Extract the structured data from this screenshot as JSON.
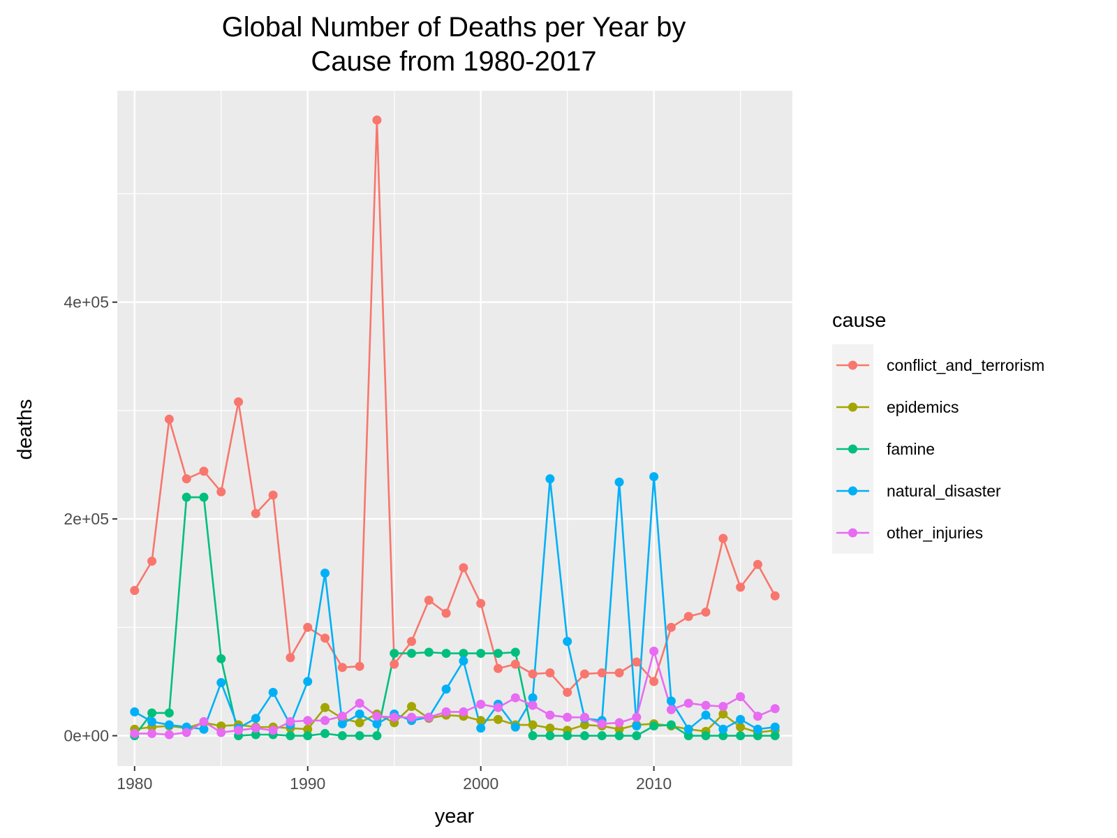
{
  "chart_data": {
    "type": "line",
    "title_lines": [
      "Global Number of Deaths per Year by",
      "Cause from 1980-2017"
    ],
    "xlabel": "year",
    "ylabel": "deaths",
    "xlim": [
      1979,
      2018
    ],
    "ylim": [
      -28000,
      595000
    ],
    "x_ticks": [
      1980,
      1990,
      2000,
      2010
    ],
    "x_tick_labels": [
      "1980",
      "1990",
      "2000",
      "2010"
    ],
    "y_ticks": [
      0,
      200000,
      400000
    ],
    "y_tick_labels": [
      "0e+00",
      "2e+05",
      "4e+05"
    ],
    "y_minor_ticks": [
      100000,
      300000,
      500000
    ],
    "grid": true,
    "legend_title": "cause",
    "legend_position": "right",
    "x": [
      1980,
      1981,
      1982,
      1983,
      1984,
      1985,
      1986,
      1987,
      1988,
      1989,
      1990,
      1991,
      1992,
      1993,
      1994,
      1995,
      1996,
      1997,
      1998,
      1999,
      2000,
      2001,
      2002,
      2003,
      2004,
      2005,
      2006,
      2007,
      2008,
      2009,
      2010,
      2011,
      2012,
      2013,
      2014,
      2015,
      2016,
      2017
    ],
    "series": [
      {
        "name": "conflict_and_terrorism",
        "color": "#F8766D",
        "values": [
          134000,
          161000,
          292000,
          237000,
          244000,
          225000,
          308000,
          205000,
          222000,
          72000,
          100000,
          90000,
          63000,
          64000,
          568000,
          66000,
          87000,
          125000,
          113000,
          155000,
          122000,
          62000,
          66000,
          57000,
          58000,
          40000,
          57000,
          58000,
          58000,
          68000,
          50000,
          100000,
          110000,
          114000,
          182000,
          137000,
          158000,
          129000
        ]
      },
      {
        "name": "epidemics",
        "color": "#A3A500",
        "values": [
          6000,
          8000,
          9000,
          7000,
          12000,
          9000,
          10000,
          8000,
          8000,
          7000,
          6000,
          26000,
          16000,
          12000,
          20000,
          12000,
          27000,
          16000,
          19000,
          18000,
          14000,
          15000,
          10000,
          10000,
          7000,
          5000,
          10000,
          9000,
          6000,
          10000,
          11000,
          9000,
          6000,
          4000,
          20000,
          8000,
          3000,
          5000
        ]
      },
      {
        "name": "famine",
        "color": "#00BF7D",
        "values": [
          0,
          21000,
          21000,
          220000,
          220000,
          71000,
          0,
          1000,
          1000,
          0,
          0,
          2000,
          0,
          0,
          0,
          76000,
          76000,
          77000,
          76000,
          76000,
          76000,
          76000,
          77000,
          0,
          0,
          0,
          0,
          0,
          0,
          0,
          9000,
          10000,
          0,
          0,
          0,
          0,
          0,
          0
        ]
      },
      {
        "name": "natural_disaster",
        "color": "#00B0F6",
        "values": [
          22000,
          13000,
          10000,
          8000,
          6000,
          49000,
          7000,
          16000,
          40000,
          10000,
          50000,
          150000,
          11000,
          20000,
          11000,
          20000,
          14000,
          17000,
          43000,
          69000,
          7000,
          29000,
          8000,
          35000,
          237000,
          87000,
          16000,
          14000,
          234000,
          9000,
          239000,
          32000,
          6000,
          19000,
          6000,
          15000,
          6000,
          8000
        ]
      },
      {
        "name": "other_injuries",
        "color": "#E76BF3",
        "values": [
          2000,
          2000,
          1000,
          3000,
          13000,
          3000,
          5000,
          7000,
          5000,
          13000,
          14000,
          14000,
          18000,
          30000,
          18000,
          17000,
          17000,
          17000,
          22000,
          22000,
          29000,
          26000,
          35000,
          28000,
          19000,
          17000,
          17000,
          11000,
          12000,
          17000,
          78000,
          24000,
          30000,
          28000,
          27000,
          36000,
          18000,
          25000
        ]
      }
    ]
  }
}
